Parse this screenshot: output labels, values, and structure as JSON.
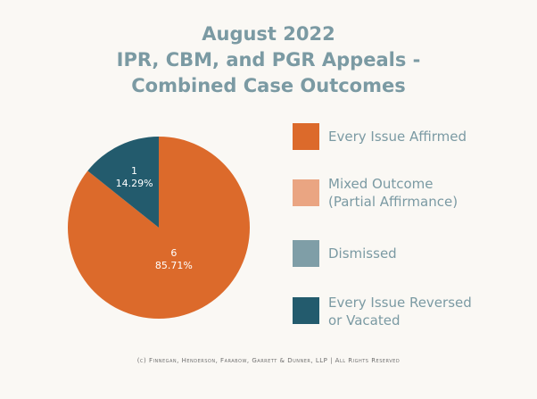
{
  "title": {
    "line1": "August 2022",
    "line2": "IPR, CBM, and PGR Appeals -",
    "line3": "Combined Case Outcomes"
  },
  "chart_data": {
    "type": "pie",
    "title": "August 2022 IPR, CBM, and PGR Appeals - Combined Case Outcomes",
    "categories": [
      "Every Issue Affirmed",
      "Mixed Outcome (Partial Affirmance)",
      "Dismissed",
      "Every Issue Reversed or Vacated"
    ],
    "values": [
      6,
      0,
      0,
      1
    ],
    "percent_labels": [
      "85.71%",
      "0%",
      "0%",
      "14.29%"
    ],
    "colors": [
      "#dc6a2b",
      "#eaa582",
      "#7f9ea7",
      "#235b6d"
    ],
    "legend_position": "right"
  },
  "legend": [
    {
      "label_line1": "Every Issue Affirmed",
      "label_line2": ""
    },
    {
      "label_line1": "Mixed Outcome",
      "label_line2": "(Partial Affirmance)"
    },
    {
      "label_line1": "Dismissed",
      "label_line2": ""
    },
    {
      "label_line1": "Every Issue Reversed",
      "label_line2": "or Vacated"
    }
  ],
  "footer": "(c) Finnegan, Henderson, Farabow, Garrett & Dunner, LLP | All Rights Reserved"
}
